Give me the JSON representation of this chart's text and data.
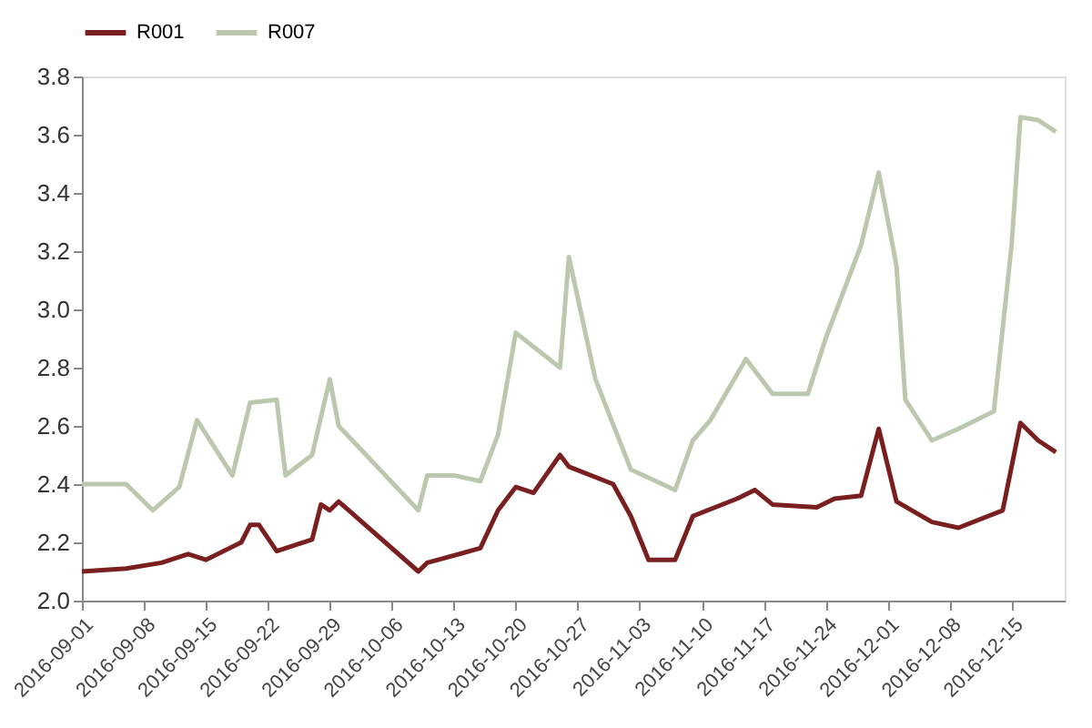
{
  "chart_data": {
    "type": "line",
    "legend": "top",
    "grid": false,
    "marker": "none",
    "line_style": "solid",
    "xlim": [
      "2016-09-01",
      "2016-12-21"
    ],
    "xticks": [
      "2016-09-01",
      "2016-09-08",
      "2016-09-15",
      "2016-09-22",
      "2016-09-29",
      "2016-10-06",
      "2016-10-13",
      "2016-10-20",
      "2016-10-27",
      "2016-11-03",
      "2016-11-10",
      "2016-11-17",
      "2016-11-24",
      "2016-12-01",
      "2016-12-08",
      "2016-12-15"
    ],
    "ylim": [
      2.0,
      3.8
    ],
    "yticks": [
      {
        "value": 2,
        "label": "2.0"
      },
      2.2,
      2.4,
      2.6,
      2.8,
      {
        "value": 3,
        "label": "3.0"
      },
      3.2,
      3.4,
      3.6,
      3.8
    ],
    "series": [
      {
        "name": "R001",
        "color": "#7a1f1f",
        "x": [
          "2016-09-01",
          "2016-09-06",
          "2016-09-10",
          "2016-09-13",
          "2016-09-15",
          "2016-09-19",
          "2016-09-20",
          "2016-09-21",
          "2016-09-23",
          "2016-09-27",
          "2016-09-28",
          "2016-09-29",
          "2016-09-30",
          "2016-10-09",
          "2016-10-10",
          "2016-10-16",
          "2016-10-18",
          "2016-10-20",
          "2016-10-22",
          "2016-10-25",
          "2016-10-26",
          "2016-10-31",
          "2016-11-02",
          "2016-11-04",
          "2016-11-07",
          "2016-11-09",
          "2016-11-14",
          "2016-11-16",
          "2016-11-18",
          "2016-11-23",
          "2016-11-25",
          "2016-11-28",
          "2016-11-30",
          "2016-12-02",
          "2016-12-06",
          "2016-12-09",
          "2016-12-14",
          "2016-12-16",
          "2016-12-18",
          "2016-12-20"
        ],
        "values": [
          2.1,
          2.11,
          2.13,
          2.16,
          2.14,
          2.2,
          2.26,
          2.26,
          2.17,
          2.21,
          2.33,
          2.31,
          2.34,
          2.1,
          2.13,
          2.18,
          2.31,
          2.39,
          2.37,
          2.5,
          2.46,
          2.4,
          2.29,
          2.14,
          2.14,
          2.29,
          2.35,
          2.38,
          2.33,
          2.32,
          2.35,
          2.36,
          2.59,
          2.34,
          2.27,
          2.25,
          2.31,
          2.61,
          2.55,
          2.51
        ]
      },
      {
        "name": "R007",
        "color": "#bcc8ae",
        "x": [
          "2016-09-01",
          "2016-09-06",
          "2016-09-09",
          "2016-09-12",
          "2016-09-14",
          "2016-09-18",
          "2016-09-20",
          "2016-09-23",
          "2016-09-24",
          "2016-09-27",
          "2016-09-29",
          "2016-09-30",
          "2016-10-09",
          "2016-10-10",
          "2016-10-13",
          "2016-10-16",
          "2016-10-18",
          "2016-10-20",
          "2016-10-25",
          "2016-10-26",
          "2016-10-29",
          "2016-11-02",
          "2016-11-07",
          "2016-11-09",
          "2016-11-11",
          "2016-11-15",
          "2016-11-18",
          "2016-11-22",
          "2016-11-24",
          "2016-11-28",
          "2016-11-30",
          "2016-12-02",
          "2016-12-03",
          "2016-12-06",
          "2016-12-09",
          "2016-12-13",
          "2016-12-15",
          "2016-12-16",
          "2016-12-18",
          "2016-12-20"
        ],
        "values": [
          2.4,
          2.4,
          2.31,
          2.39,
          2.62,
          2.43,
          2.68,
          2.69,
          2.43,
          2.5,
          2.76,
          2.6,
          2.31,
          2.43,
          2.43,
          2.41,
          2.57,
          2.92,
          2.8,
          3.18,
          2.76,
          2.45,
          2.38,
          2.55,
          2.62,
          2.83,
          2.71,
          2.71,
          2.9,
          3.22,
          3.47,
          3.15,
          2.69,
          2.55,
          2.59,
          2.65,
          3.22,
          3.66,
          3.65,
          3.61
        ]
      }
    ]
  }
}
